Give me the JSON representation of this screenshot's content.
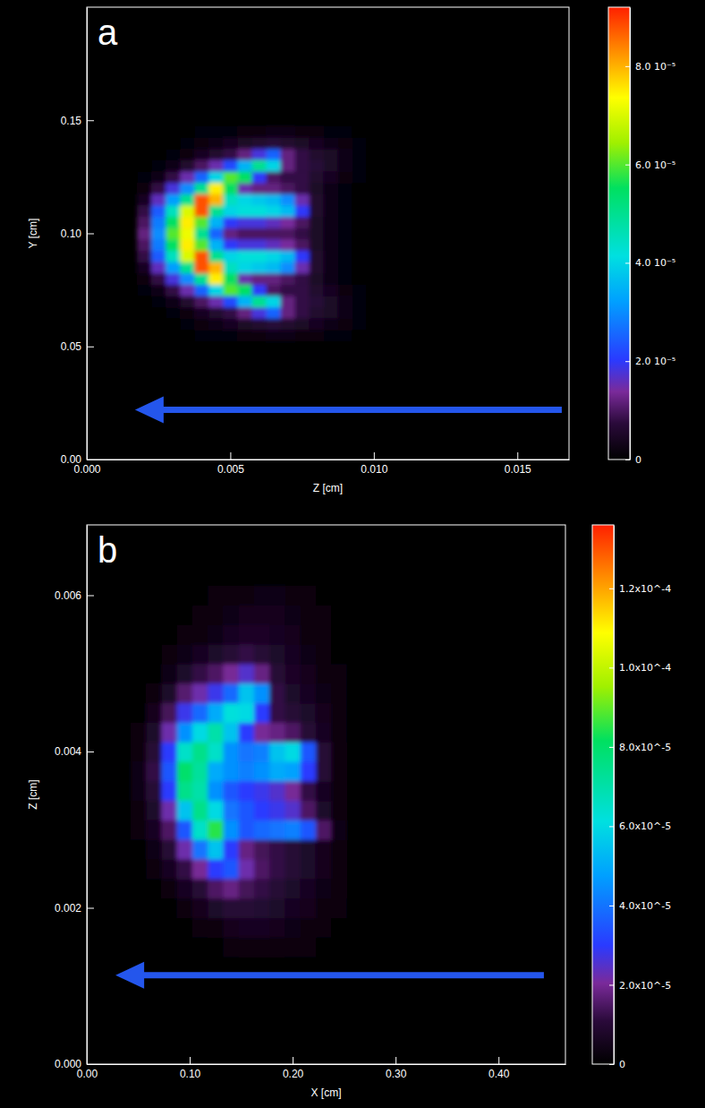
{
  "chart_data": [
    {
      "type": "heatmap",
      "panel": "a",
      "x_label": "Z [cm]",
      "y_label": "Y [cm]",
      "xlim": [
        0,
        0.0168
      ],
      "ylim": [
        0,
        0.2
      ],
      "xticks": [
        {
          "value": 0,
          "label": "0.000"
        },
        {
          "value": 0.005,
          "label": "0.005"
        },
        {
          "value": 0.01,
          "label": "0.010"
        },
        {
          "value": 0.015,
          "label": "0.015"
        }
      ],
      "yticks": [
        {
          "value": 0,
          "label": "0.00"
        },
        {
          "value": 0.05,
          "label": "0.05"
        },
        {
          "value": 0.1,
          "label": "0.10"
        },
        {
          "value": 0.15,
          "label": "0.15"
        }
      ],
      "x": [
        0.002,
        0.0025,
        0.003,
        0.0035,
        0.004,
        0.0045,
        0.005,
        0.0055,
        0.006,
        0.0065,
        0.007,
        0.0075,
        0.008,
        0.0085,
        0.009,
        0.0095,
        0.01
      ],
      "y": [
        0.055,
        0.06,
        0.065,
        0.07,
        0.075,
        0.08,
        0.085,
        0.09,
        0.095,
        0.1,
        0.105,
        0.11,
        0.115,
        0.12,
        0.125,
        0.13,
        0.135,
        0.14,
        0.145
      ],
      "z": [
        [
          0,
          0,
          0,
          0,
          1e-06,
          1e-06,
          1e-06,
          2e-06,
          2e-06,
          3e-06,
          3e-06,
          2e-06,
          2e-06,
          1e-06,
          1e-06,
          0,
          0
        ],
        [
          0,
          0,
          0,
          1e-06,
          2e-06,
          3e-06,
          4e-06,
          5e-06,
          6e-06,
          7e-06,
          6e-06,
          5e-06,
          4e-06,
          3e-06,
          2e-06,
          1e-06,
          0
        ],
        [
          0,
          0,
          1e-06,
          2e-06,
          4e-06,
          6e-06,
          8e-06,
          1.2e-05,
          1.8e-05,
          2.5e-05,
          1.2e-05,
          8e-06,
          6e-06,
          5e-06,
          3e-06,
          1e-06,
          0
        ],
        [
          0,
          1e-06,
          3e-06,
          6e-06,
          1e-05,
          1.5e-05,
          2.2e-05,
          3.5e-05,
          5e-05,
          4e-05,
          1.2e-05,
          8e-06,
          7e-06,
          5e-06,
          3e-06,
          1e-06,
          0
        ],
        [
          1e-06,
          3e-06,
          8e-06,
          1.5e-05,
          2.5e-05,
          4e-05,
          6e-05,
          5.5e-05,
          2e-05,
          1e-05,
          8e-06,
          8e-06,
          6e-06,
          4e-06,
          2e-06,
          1e-06,
          0
        ],
        [
          2e-06,
          8e-06,
          1.8e-05,
          3e-05,
          5e-05,
          7.5e-05,
          5.5e-05,
          1.5e-05,
          1.2e-05,
          1.2e-05,
          1e-05,
          8e-06,
          5e-06,
          3e-06,
          1e-06,
          0,
          0
        ],
        [
          4e-06,
          1.6e-05,
          3.2e-05,
          5e-05,
          8.8e-05,
          8e-05,
          4.5e-05,
          4e-05,
          3.8e-05,
          3.6e-05,
          3e-05,
          1.5e-05,
          6e-06,
          3e-06,
          1e-06,
          0,
          0
        ],
        [
          8e-06,
          2.4e-05,
          4.5e-05,
          7e-05,
          8.8e-05,
          5e-05,
          4e-05,
          4.2e-05,
          4.2e-05,
          4e-05,
          3.6e-05,
          2e-05,
          6e-06,
          3e-06,
          1e-06,
          0,
          0
        ],
        [
          1e-05,
          2.8e-05,
          5.5e-05,
          7.5e-05,
          6e-05,
          3.5e-05,
          2e-05,
          1.8e-05,
          1.8e-05,
          1.6e-05,
          1.4e-05,
          1e-05,
          5e-06,
          3e-06,
          1e-06,
          0,
          0
        ],
        [
          1.2e-05,
          3e-05,
          6e-05,
          7.2e-05,
          5e-05,
          2.5e-05,
          1.2e-05,
          1e-05,
          1e-05,
          1e-05,
          1e-05,
          8e-06,
          5e-06,
          3e-06,
          1e-06,
          0,
          0
        ],
        [
          1e-05,
          2.8e-05,
          5.5e-05,
          7.5e-05,
          6e-05,
          3.5e-05,
          2e-05,
          1.8e-05,
          1.8e-05,
          1.6e-05,
          1.4e-05,
          1e-05,
          5e-06,
          3e-06,
          1e-06,
          0,
          0
        ],
        [
          8e-06,
          2.4e-05,
          4.5e-05,
          7e-05,
          8.8e-05,
          5e-05,
          4e-05,
          4.2e-05,
          4.2e-05,
          4e-05,
          3.6e-05,
          2e-05,
          6e-06,
          3e-06,
          1e-06,
          0,
          0
        ],
        [
          4e-06,
          1.6e-05,
          3.2e-05,
          5e-05,
          8.8e-05,
          8e-05,
          4.5e-05,
          4e-05,
          3.8e-05,
          3.6e-05,
          3e-05,
          1.5e-05,
          6e-06,
          3e-06,
          1e-06,
          0,
          0
        ],
        [
          2e-06,
          8e-06,
          1.8e-05,
          3e-05,
          5e-05,
          7.5e-05,
          5.5e-05,
          1.5e-05,
          1.2e-05,
          1.2e-05,
          1e-05,
          8e-06,
          5e-06,
          3e-06,
          1e-06,
          0,
          0
        ],
        [
          1e-06,
          3e-06,
          8e-06,
          1.5e-05,
          2.5e-05,
          4e-05,
          6e-05,
          5.5e-05,
          2e-05,
          1e-05,
          8e-06,
          8e-06,
          6e-06,
          4e-06,
          2e-06,
          1e-06,
          0
        ],
        [
          0,
          1e-06,
          3e-06,
          6e-06,
          1e-05,
          1.5e-05,
          2.2e-05,
          3.5e-05,
          5e-05,
          4e-05,
          1.2e-05,
          8e-06,
          7e-06,
          5e-06,
          3e-06,
          1e-06,
          0
        ],
        [
          0,
          0,
          1e-06,
          2e-06,
          4e-06,
          6e-06,
          8e-06,
          1.2e-05,
          1.8e-05,
          2.5e-05,
          1.2e-05,
          8e-06,
          6e-06,
          5e-06,
          3e-06,
          1e-06,
          0
        ],
        [
          0,
          0,
          0,
          1e-06,
          2e-06,
          3e-06,
          4e-06,
          5e-06,
          6e-06,
          7e-06,
          6e-06,
          5e-06,
          4e-06,
          3e-06,
          2e-06,
          1e-06,
          0
        ],
        [
          0,
          0,
          0,
          0,
          1e-06,
          1e-06,
          1e-06,
          2e-06,
          2e-06,
          3e-06,
          3e-06,
          2e-06,
          2e-06,
          1e-06,
          1e-06,
          0,
          0
        ]
      ],
      "colorbar": {
        "range": [
          0,
          9.2e-05
        ],
        "ticks": [
          0,
          {
            "value": 2e-05,
            "label": "2.0 10⁻⁵"
          },
          {
            "value": 4e-05,
            "label": "4.0 10⁻⁵"
          },
          {
            "value": 6e-05,
            "label": "6.0 10⁻⁵"
          },
          {
            "value": 8e-05,
            "label": "8.0 10⁻⁵"
          }
        ]
      }
    },
    {
      "type": "heatmap",
      "panel": "b",
      "x_label": "X [cm]",
      "y_label": "Z [cm]",
      "xlim": [
        0,
        0.465
      ],
      "ylim": [
        0,
        0.0069
      ],
      "xticks": [
        {
          "value": 0,
          "label": "0.00"
        },
        {
          "value": 0.1,
          "label": "0.10"
        },
        {
          "value": 0.2,
          "label": "0.20"
        },
        {
          "value": 0.3,
          "label": "0.30"
        },
        {
          "value": 0.4,
          "label": "0.40"
        }
      ],
      "yticks": [
        {
          "value": 0,
          "label": "0.000"
        },
        {
          "value": 0.002,
          "label": "0.002"
        },
        {
          "value": 0.004,
          "label": "0.004"
        },
        {
          "value": 0.006,
          "label": "0.006"
        }
      ],
      "x": [
        0.05,
        0.065,
        0.08,
        0.095,
        0.11,
        0.125,
        0.14,
        0.155,
        0.17,
        0.185,
        0.2,
        0.215,
        0.23,
        0.245,
        0.26,
        0.275
      ],
      "y": [
        0.0015,
        0.00175,
        0.002,
        0.00225,
        0.0025,
        0.00275,
        0.003,
        0.00325,
        0.0035,
        0.00375,
        0.004,
        0.00425,
        0.0045,
        0.00475,
        0.005,
        0.00525,
        0.0055,
        0.00575,
        0.006
      ],
      "z": [
        [
          0,
          0,
          0,
          0,
          0,
          1e-06,
          2e-06,
          3e-06,
          3e-06,
          3e-06,
          2e-06,
          2e-06,
          1e-06,
          1e-06,
          0,
          0
        ],
        [
          0,
          0,
          0,
          1e-06,
          2e-06,
          3e-06,
          5e-06,
          6e-06,
          6e-06,
          5e-06,
          4e-06,
          3e-06,
          2e-06,
          1e-06,
          1e-06,
          0
        ],
        [
          0,
          0,
          1e-06,
          3e-06,
          5e-06,
          8e-06,
          1e-05,
          1e-05,
          9e-06,
          8e-06,
          6e-06,
          5e-06,
          3e-06,
          2e-06,
          1e-06,
          0
        ],
        [
          0,
          1e-06,
          3e-06,
          6e-06,
          1e-05,
          1.5e-05,
          1.8e-05,
          1.4e-05,
          1.2e-05,
          1e-05,
          8e-06,
          6e-06,
          4e-06,
          3e-06,
          1e-06,
          0
        ],
        [
          0,
          2e-06,
          6e-06,
          1.2e-05,
          2e-05,
          3e-05,
          3.5e-05,
          2.2e-05,
          1.5e-05,
          1.2e-05,
          1e-05,
          8e-06,
          5e-06,
          3e-06,
          1e-06,
          0
        ],
        [
          1e-06,
          4e-06,
          1e-05,
          2.2e-05,
          4e-05,
          5.5e-05,
          3e-05,
          1.8e-05,
          1.4e-05,
          1.2e-05,
          1e-05,
          8e-06,
          5e-06,
          3e-06,
          1e-06,
          0
        ],
        [
          2e-06,
          6e-06,
          1.5e-05,
          3.5e-05,
          6.5e-05,
          8.5e-05,
          4.5e-05,
          3.5e-05,
          3.8e-05,
          4e-05,
          4.2e-05,
          3.5e-05,
          1.5e-05,
          4e-06,
          1e-06,
          0
        ],
        [
          3e-06,
          8e-06,
          2.2e-05,
          5.5e-05,
          7.5e-05,
          6e-05,
          4e-05,
          3.5e-05,
          3e-05,
          2.8e-05,
          2.5e-05,
          1.5e-05,
          8e-06,
          3e-06,
          1e-06,
          0
        ],
        [
          4e-06,
          1e-05,
          3e-05,
          7.5e-05,
          7e-05,
          4.5e-05,
          3.5e-05,
          3e-05,
          2.8e-05,
          2.5e-05,
          2e-05,
          1.2e-05,
          6e-06,
          3e-06,
          1e-06,
          0
        ],
        [
          4e-06,
          1.2e-05,
          3.5e-05,
          8e-05,
          7.2e-05,
          5e-05,
          4.5e-05,
          4.2e-05,
          4.5e-05,
          5e-05,
          4.8e-05,
          3e-05,
          1e-05,
          3e-06,
          1e-06,
          0
        ],
        [
          3e-06,
          1e-05,
          3e-05,
          6.5e-05,
          7.5e-05,
          6.5e-05,
          4.5e-05,
          4e-05,
          4.2e-05,
          5.5e-05,
          6e-05,
          3.5e-05,
          1e-05,
          3e-06,
          1e-06,
          0
        ],
        [
          2e-06,
          8e-06,
          2.2e-05,
          4.5e-05,
          6e-05,
          7e-05,
          5.5e-05,
          3e-05,
          2e-05,
          1.8e-05,
          1.5e-05,
          1e-05,
          6e-06,
          2e-06,
          1e-06,
          0
        ],
        [
          1e-06,
          5e-06,
          1.4e-05,
          2.8e-05,
          3.8e-05,
          5e-05,
          6.2e-05,
          6e-05,
          3e-05,
          1.2e-05,
          1e-05,
          8e-06,
          5e-06,
          2e-06,
          1e-06,
          0
        ],
        [
          0,
          3e-06,
          8e-06,
          1.6e-05,
          2.2e-05,
          2.8e-05,
          3.8e-05,
          5.5e-05,
          4.5e-05,
          1.2e-05,
          8e-06,
          6e-06,
          4e-06,
          2e-06,
          1e-06,
          0
        ],
        [
          0,
          1e-06,
          4e-06,
          8e-06,
          1.2e-05,
          1.5e-05,
          2e-05,
          2.5e-05,
          1.8e-05,
          1e-05,
          7e-06,
          5e-06,
          3e-06,
          2e-06,
          1e-06,
          0
        ],
        [
          0,
          0,
          2e-06,
          4e-06,
          6e-06,
          8e-06,
          1e-05,
          1.2e-05,
          1e-05,
          8e-06,
          6e-06,
          4e-06,
          3e-06,
          1e-06,
          0,
          0
        ],
        [
          0,
          0,
          1e-06,
          2e-06,
          3e-06,
          4e-06,
          6e-06,
          7e-06,
          7e-06,
          6e-06,
          5e-06,
          3e-06,
          2e-06,
          1e-06,
          0,
          0
        ],
        [
          0,
          0,
          0,
          1e-06,
          2e-06,
          3e-06,
          4e-06,
          5e-06,
          5e-06,
          5e-06,
          4e-06,
          3e-06,
          2e-06,
          1e-06,
          0,
          0
        ],
        [
          0,
          0,
          0,
          0,
          1e-06,
          2e-06,
          3e-06,
          3e-06,
          4e-06,
          4e-06,
          3e-06,
          2e-06,
          1e-06,
          0,
          0,
          0
        ]
      ],
      "colorbar": {
        "range": [
          0,
          0.000136
        ],
        "ticks": [
          0,
          {
            "value": 2e-05,
            "label": "2.0x10^-5"
          },
          {
            "value": 4e-05,
            "label": "4.0x10^-5"
          },
          {
            "value": 6e-05,
            "label": "6.0x10^-5"
          },
          {
            "value": 8e-05,
            "label": "8.0x10^-5"
          },
          {
            "value": 0.0001,
            "label": "1.0x10^-4"
          },
          {
            "value": 0.00012,
            "label": "1.2x10^-4"
          }
        ]
      }
    }
  ]
}
